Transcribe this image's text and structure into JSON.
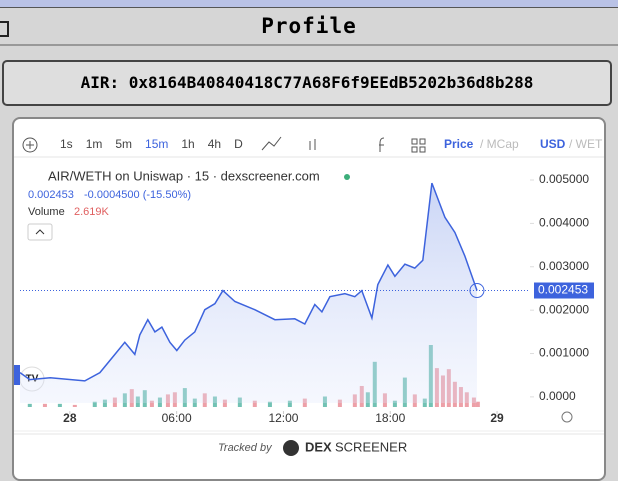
{
  "window": {
    "title": "Profile"
  },
  "address": "AIR: 0x8164B40840418C77A68F6f9EEdB5202b36d8b288",
  "toolbar": {
    "intervals": [
      "1s",
      "1m",
      "5m",
      "15m",
      "1h",
      "4h",
      "D"
    ],
    "active_interval": 3,
    "price": "Price",
    "mcap": "/ MCap",
    "usd": "USD",
    "weth": "/ WET"
  },
  "footer": {
    "tracked_by": "Tracked by",
    "brand_a": "DEX",
    "brand_b": "SCREENER"
  },
  "chart_data": {
    "type": "line",
    "title": "AIR/WETH on Uniswap · 15 · dexscreener.com",
    "change": "-0.0004500 (-15.50%)",
    "current_price": {
      "value": 0.002453,
      "label": "0.002453"
    },
    "color": "#3d63dd",
    "x": [
      -2.8,
      -2.25,
      -1.1,
      0.84,
      1.69,
      2.53,
      3.09,
      3.65,
      3.93,
      4.38,
      4.78,
      5.17,
      5.62,
      6.01,
      6.46,
      7.02,
      7.58,
      8.15,
      8.6,
      9.27,
      10.39,
      11.52,
      12.64,
      13.2,
      13.76,
      14.16,
      14.61,
      15.45,
      16.01,
      16.4,
      16.97,
      17.3,
      17.87,
      18.26,
      18.82,
      19.38,
      19.83,
      20.34,
      21.07,
      21.63,
      22.19,
      22.87
    ],
    "values": [
      0.00056,
      0.0004,
      0.00044,
      0.00037,
      0.00056,
      0.00098,
      0.00126,
      0.00098,
      0.00143,
      0.00178,
      0.0015,
      0.00161,
      0.00126,
      0.00107,
      0.00131,
      0.0015,
      0.00201,
      0.00215,
      0.00245,
      0.0022,
      0.00201,
      0.00178,
      0.0018,
      0.00168,
      0.00213,
      0.00196,
      0.00231,
      0.00238,
      0.00231,
      0.00245,
      0.00182,
      0.00259,
      0.00304,
      0.00278,
      0.00306,
      0.00297,
      0.00315,
      0.00493,
      0.00414,
      0.00379,
      0.00325,
      0.002453
    ],
    "xlim": [
      -2.8,
      25.85
    ],
    "ylim": [
      -0.00014,
      0.0053
    ],
    "xticks": [
      {
        "value": 0,
        "label": "28"
      },
      {
        "value": 6,
        "label": "06:00"
      },
      {
        "value": 12,
        "label": "12:00"
      },
      {
        "value": 18,
        "label": "18:00"
      },
      {
        "value": 24,
        "label": "29"
      }
    ],
    "yticks": [
      {
        "value": 0,
        "label": "0.0000"
      },
      {
        "value": 0.001,
        "label": "0.001000"
      },
      {
        "value": 0.002,
        "label": "0.002000"
      },
      {
        "value": 0.003,
        "label": "0.003000"
      },
      {
        "value": 0.004,
        "label": "0.004000"
      },
      {
        "value": 0.005,
        "label": "0.005000"
      }
    ],
    "volume": {
      "name": "Volume",
      "label": "2.619K",
      "up_color": "#72c2b4",
      "down_color": "#eda0a8",
      "x": [
        -2.25,
        -1.4,
        -0.56,
        0.28,
        1.4,
        1.97,
        2.53,
        3.09,
        3.48,
        3.82,
        4.21,
        4.61,
        5.06,
        5.51,
        5.9,
        6.46,
        7.02,
        7.58,
        8.15,
        8.71,
        9.55,
        10.39,
        11.24,
        12.36,
        13.2,
        14.33,
        15.17,
        16.01,
        16.4,
        16.74,
        17.13,
        17.7,
        18.26,
        18.82,
        19.38,
        19.94,
        20.28,
        20.62,
        20.96,
        21.29,
        21.63,
        21.97,
        22.3,
        22.7,
        22.92
      ],
      "values": [
        1560,
        1560,
        1560,
        1040,
        2600,
        3640,
        4680,
        6760,
        8840,
        5200,
        8320,
        3120,
        4680,
        6240,
        7280,
        9360,
        4160,
        6760,
        5200,
        3640,
        4680,
        3120,
        2600,
        3120,
        4160,
        5200,
        3640,
        6240,
        10400,
        7280,
        22360,
        6760,
        3120,
        14560,
        6240,
        4160,
        30680,
        19240,
        15600,
        18720,
        12480,
        9880,
        7280,
        4680,
        2619
      ],
      "up": [
        true,
        false,
        true,
        false,
        true,
        true,
        false,
        true,
        false,
        true,
        true,
        false,
        true,
        false,
        false,
        true,
        true,
        false,
        true,
        false,
        true,
        false,
        true,
        true,
        false,
        true,
        false,
        false,
        false,
        true,
        true,
        false,
        true,
        true,
        false,
        true,
        true,
        false,
        false,
        false,
        false,
        false,
        false,
        false,
        false
      ]
    }
  }
}
